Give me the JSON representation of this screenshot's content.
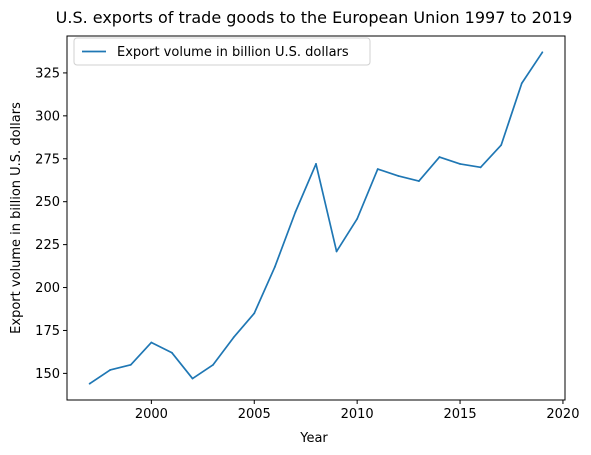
{
  "chart_data": {
    "type": "line",
    "title": "U.S. exports of trade goods to the European Union 1997 to 2019",
    "xlabel": "Year",
    "ylabel": "Export volume in billion U.S. dollars",
    "xlim": [
      1995.9,
      2020.1
    ],
    "ylim": [
      134.5,
      346.5
    ],
    "xticks": [
      2000,
      2005,
      2010,
      2015,
      2020
    ],
    "yticks": [
      150,
      175,
      200,
      225,
      250,
      275,
      300,
      325
    ],
    "grid": false,
    "legend": "top-left",
    "color": "#1f77b4",
    "series": [
      {
        "name": "Export volume in billion U.S. dollars",
        "x": [
          1997,
          1998,
          1999,
          2000,
          2001,
          2002,
          2003,
          2004,
          2005,
          2006,
          2007,
          2008,
          2009,
          2010,
          2011,
          2012,
          2013,
          2014,
          2015,
          2016,
          2017,
          2018,
          2019
        ],
        "y": [
          144,
          152,
          155,
          168,
          162,
          147,
          155,
          171,
          185,
          212,
          244,
          272,
          221,
          240,
          269,
          265,
          262,
          276,
          272,
          270,
          283,
          319,
          337
        ]
      }
    ]
  }
}
